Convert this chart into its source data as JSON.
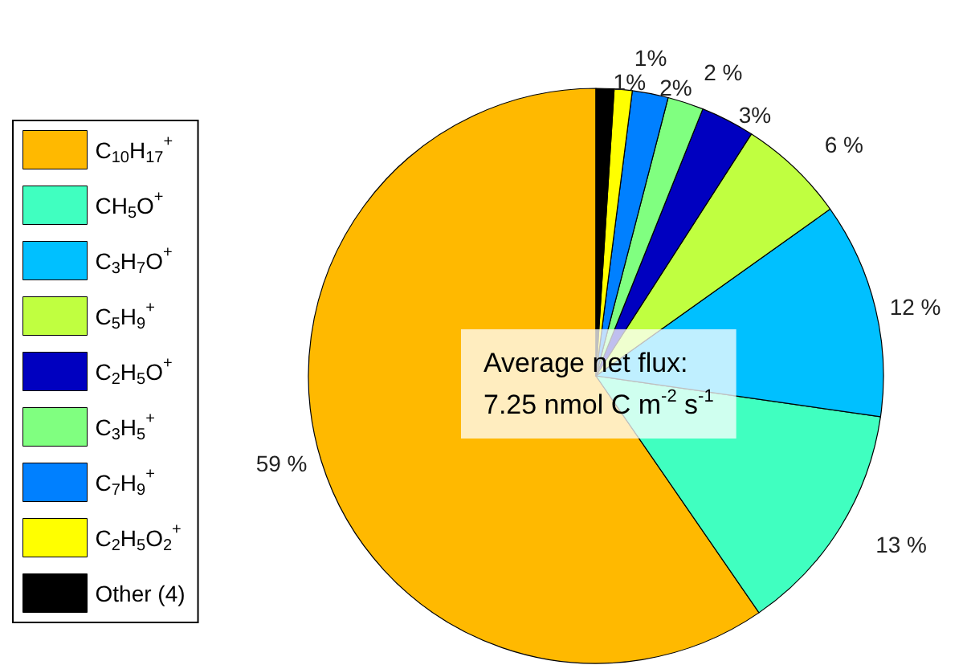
{
  "chart_data": {
    "type": "pie",
    "categories": [
      "C$_{10}$H$_{17}$$^{+}$",
      "CH$_{5}$O$^{+}$",
      "C$_{3}$H$_{7}$O$^{+}$",
      "C$_{5}$H$_{9}$$^{+}$",
      "C$_{2}$H$_{5}$O$^{+}$",
      "C$_{3}$H$_{5}$$^{+}$",
      "C$_{7}$H$_{9}$$^{+}$",
      "C$_{2}$H$_{5}$O$_{2}$$^{+}$",
      "Other (4)"
    ],
    "values": [
      59,
      13,
      12,
      6,
      3,
      2,
      2,
      1,
      1
    ],
    "value_labels": [
      "59 %",
      "13 %",
      "12 %",
      "6 %",
      "3%",
      "2 %",
      "2%",
      "1%",
      "1%"
    ],
    "colors": [
      "#ffb900",
      "#40ffc0",
      "#00c0ff",
      "#c0ff40",
      "#0000c0",
      "#80ff80",
      "#0080ff",
      "#ffff00",
      "#000000"
    ],
    "legend": "left",
    "annotations": [
      "Average net flux:",
      "7.25 nmol C m$^{-2}$ s$^{-1}$"
    ]
  }
}
